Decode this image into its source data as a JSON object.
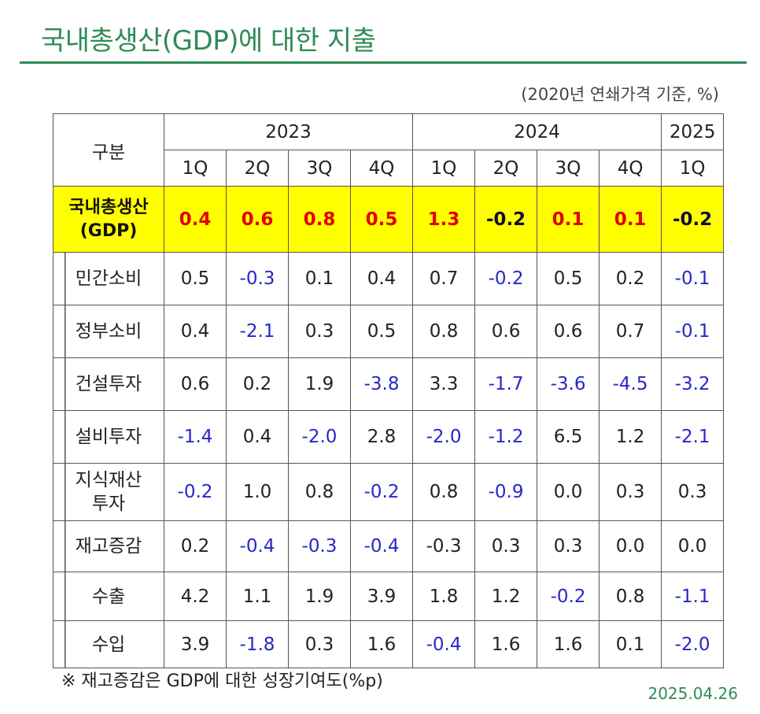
{
  "title": "국내총생산(GDP)에 대한 지출",
  "unit_note": "(2020년 연쇄가격 기준, %)",
  "table": {
    "category_header": "구분",
    "years": [
      {
        "label": "2023"
      },
      {
        "label": "2024"
      },
      {
        "label": "2025"
      }
    ],
    "quarters": [
      "1Q",
      "2Q",
      "3Q",
      "4Q",
      "1Q",
      "2Q",
      "3Q",
      "4Q",
      "1Q"
    ],
    "gdp_row": {
      "label_line1": "국내총생산",
      "label_line2": "(GDP)",
      "values": [
        "0.4",
        "0.6",
        "0.8",
        "0.5",
        "1.3",
        "-0.2",
        "0.1",
        "0.1",
        "-0.2"
      ]
    },
    "rows": [
      {
        "label": "민간소비",
        "values": [
          "0.5",
          "-0.3",
          "0.1",
          "0.4",
          "0.7",
          "-0.2",
          "0.5",
          "0.2",
          "-0.1"
        ]
      },
      {
        "label": "정부소비",
        "values": [
          "0.4",
          "-2.1",
          "0.3",
          "0.5",
          "0.8",
          "0.6",
          "0.6",
          "0.7",
          "-0.1"
        ]
      },
      {
        "label": "건설투자",
        "values": [
          "0.6",
          "0.2",
          "1.9",
          "-3.8",
          "3.3",
          "-1.7",
          "-3.6",
          "-4.5",
          "-3.2"
        ]
      },
      {
        "label": "설비투자",
        "values": [
          "-1.4",
          "0.4",
          "-2.0",
          "2.8",
          "-2.0",
          "-1.2",
          "6.5",
          "1.2",
          "-2.1"
        ]
      },
      {
        "label_line1": "지식재산",
        "label_line2": "투자",
        "values": [
          "-0.2",
          "1.0",
          "0.8",
          "-0.2",
          "0.8",
          "-0.9",
          "0.0",
          "0.3",
          "0.3"
        ]
      },
      {
        "label": "재고증감",
        "values": [
          "0.2",
          "-0.4",
          "-0.3",
          "-0.4",
          "-0.3",
          "0.3",
          "0.3",
          "0.0",
          "0.0"
        ]
      },
      {
        "label": "수출",
        "values": [
          "4.2",
          "1.1",
          "1.9",
          "3.9",
          "1.8",
          "1.2",
          "-0.2",
          "0.8",
          "-1.1"
        ]
      },
      {
        "label": "수입",
        "values": [
          "3.9",
          "-1.8",
          "0.3",
          "1.6",
          "-0.4",
          "1.6",
          "1.6",
          "0.1",
          "-2.0"
        ]
      }
    ]
  },
  "footnote": "※ 재고증감은 GDP에 대한 성장기여도(%p)",
  "date": "2025.04.26",
  "colors": {
    "title_green": "#2e8b57",
    "highlight_yellow": "#ffff00",
    "positive_gdp_red": "#e00000",
    "negative_blue": "#2727c8"
  }
}
